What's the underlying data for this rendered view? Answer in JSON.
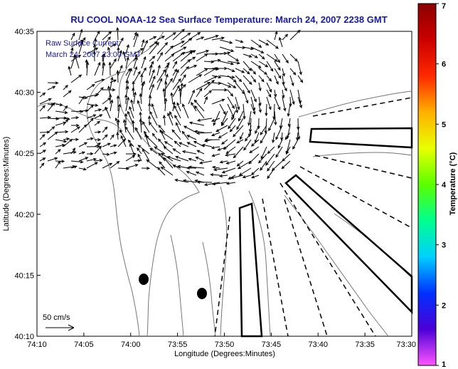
{
  "chart_data": {
    "type": "map-vector-field",
    "title": "RU COOL  NOAA-12  Sea Surface Temperature:  March 24, 2007 2238 GMT",
    "xlabel": "Longitude (Degrees:Minutes)",
    "ylabel": "Latitude (Degrees:Minutes)",
    "x_ticks": [
      "74:10",
      "74:05",
      "74:00",
      "73:55",
      "73:50",
      "73:45",
      "73:40",
      "73:35",
      "73:30"
    ],
    "y_ticks": [
      "40:35",
      "40:30",
      "40:25",
      "40:20",
      "40:15",
      "40:10"
    ],
    "xlim_minutes_west_of_74": [
      10,
      -30
    ],
    "ylim_minutes_north_of_40": [
      10,
      35
    ],
    "annotations": {
      "raw_current": "Raw Surface Current:",
      "current_time": "March 24, 2007 23:00 GMT",
      "scale": "50 cm/s"
    },
    "colorbar": {
      "label": "Temperature (°C)",
      "ticks": [
        "7",
        "6",
        "5",
        "4",
        "3",
        "2",
        "1"
      ],
      "range": [
        1,
        7
      ],
      "colors": [
        "#ff55ff",
        "#4b00d8",
        "#0030ff",
        "#00d0ff",
        "#00ff90",
        "#5aff00",
        "#e8ff00",
        "#ffb000",
        "#ff2800",
        "#cc0000",
        "#8a0000"
      ]
    },
    "markers": [
      {
        "name": "black-dot",
        "lon_min_west": 1.3,
        "lat_min_north": 14.6
      },
      {
        "name": "black-dot",
        "lon_min_west": -2.4,
        "lat_min_north": 13.4
      }
    ]
  }
}
